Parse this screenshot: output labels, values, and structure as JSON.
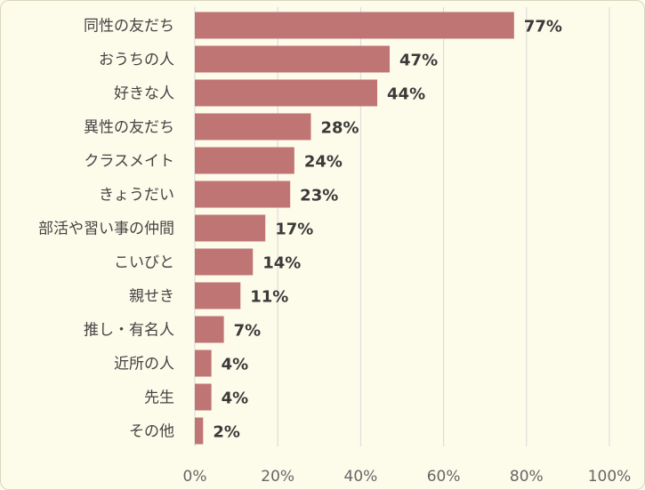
{
  "chart_data": {
    "type": "bar",
    "orientation": "horizontal",
    "categories": [
      "同性の友だち",
      "おうちの人",
      "好きな人",
      "異性の友だち",
      "クラスメイト",
      "きょうだい",
      "部活や習い事の仲間",
      "こいびと",
      "親せき",
      "推し・有名人",
      "近所の人",
      "先生",
      "その他"
    ],
    "values": [
      77,
      47,
      44,
      28,
      24,
      23,
      17,
      14,
      11,
      7,
      4,
      4,
      2
    ],
    "value_labels": [
      "77%",
      "47%",
      "44%",
      "28%",
      "24%",
      "23%",
      "17%",
      "14%",
      "11%",
      "7%",
      "4%",
      "4%",
      "2%"
    ],
    "xlim": [
      0,
      100
    ],
    "x_ticks": [
      0,
      20,
      40,
      60,
      80,
      100
    ],
    "x_tick_labels": [
      "0%",
      "20%",
      "40%",
      "60%",
      "80%",
      "100%"
    ],
    "grid": true,
    "bar_color": "#c07575",
    "grid_color": "#d8d8d8",
    "title": "",
    "xlabel": "",
    "ylabel": ""
  }
}
